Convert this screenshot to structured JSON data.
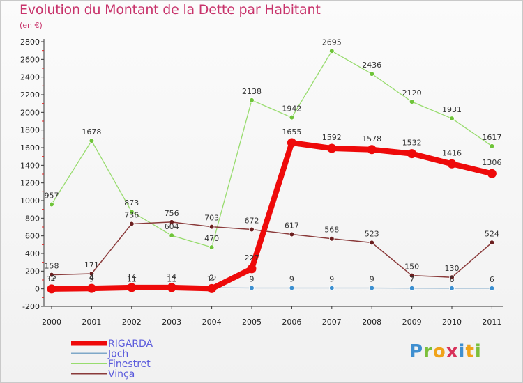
{
  "title": "Evolution du Montant de la Dette par Habitant",
  "subtitle": "(en €)",
  "logo_text": "Proxiti",
  "chart_data": {
    "type": "line",
    "title": "Evolution du Montant de la Dette par Habitant",
    "subtitle": "(en €)",
    "categories": [
      "2000",
      "2001",
      "2002",
      "2003",
      "2004",
      "2005",
      "2006",
      "2007",
      "2008",
      "2009",
      "2010",
      "2011"
    ],
    "ylim": [
      -200,
      2800
    ],
    "yticks": [
      -200,
      0,
      200,
      400,
      600,
      800,
      1000,
      1200,
      1400,
      1600,
      1800,
      2000,
      2200,
      2400,
      2600,
      2800
    ],
    "grid": false,
    "legend_position": "bottom-left",
    "series": [
      {
        "name": "RIGARDA",
        "color": "#ee0a0a",
        "marker": "#ee0a0a",
        "labelColor": "#333333",
        "values": [
          -2,
          4,
          14,
          14,
          2,
          227,
          1655,
          1592,
          1578,
          1532,
          1416,
          1306
        ],
        "labels": [
          "-2",
          "4",
          "14",
          "14",
          "2",
          "227",
          "1655",
          "1592",
          "1578",
          "1532",
          "1416",
          "1306"
        ]
      },
      {
        "name": "Joch",
        "color": "#7fa8c8",
        "marker": "#3b8fd0",
        "labelColor": "#333333",
        "values": [
          12,
          9,
          11,
          11,
          12,
          9,
          9,
          9,
          9,
          7,
          6,
          6
        ],
        "labels": [
          "12",
          "9",
          "11",
          "11",
          "12",
          "9",
          "9",
          "9",
          "9",
          "7",
          "6",
          "6"
        ]
      },
      {
        "name": "Finestret",
        "color": "#98dc6e",
        "marker": "#6fc43a",
        "labelColor": "#333333",
        "values": [
          957,
          1678,
          873,
          604,
          470,
          2138,
          1942,
          2695,
          2436,
          2120,
          1931,
          1617
        ],
        "labels": [
          "957",
          "1678",
          "873",
          "604",
          "470",
          "2138",
          "1942",
          "2695",
          "2436",
          "2120",
          "1931",
          "1617"
        ]
      },
      {
        "name": "Vinça",
        "color": "#8a3a3a",
        "marker": "#6b1f1f",
        "labelColor": "#333333",
        "values": [
          158,
          171,
          736,
          756,
          703,
          672,
          617,
          568,
          523,
          150,
          130,
          524
        ],
        "labels": [
          "158",
          "171",
          "736",
          "756",
          "703",
          "672",
          "617",
          "568",
          "523",
          "150",
          "130",
          "524"
        ]
      }
    ]
  }
}
